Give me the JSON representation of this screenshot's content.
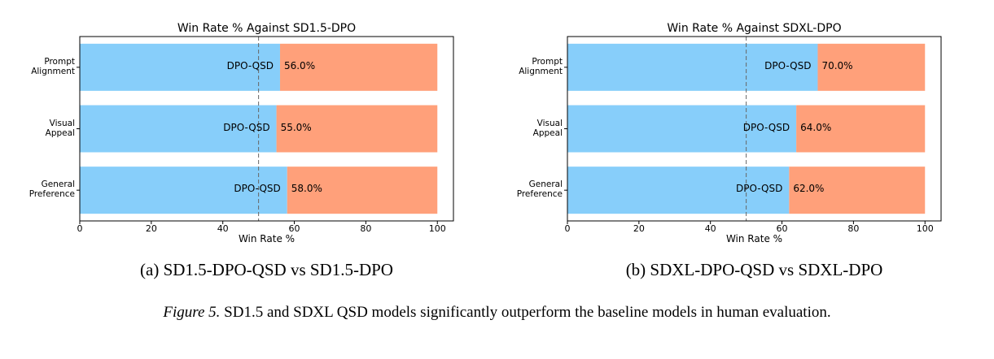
{
  "chart_data": [
    {
      "type": "bar",
      "orientation": "horizontal",
      "stacked": true,
      "title": "Win Rate % Against SD1.5-DPO",
      "xlabel": "Win Rate %",
      "caption": "(a) SD1.5-DPO-QSD vs SD1.5-DPO",
      "categories": [
        "Prompt\nAlignment",
        "Visual\nAppeal",
        "General\nPreference"
      ],
      "series": [
        {
          "name": "DPO-QSD",
          "color": "#87cefa",
          "values": [
            56,
            55,
            58
          ],
          "value_labels": [
            "56.0%",
            "55.0%",
            "58.0%"
          ]
        },
        {
          "color": "#ffa07a",
          "values": [
            44,
            45,
            42
          ]
        }
      ],
      "xlim": [
        0,
        104.5
      ],
      "xticks": [
        0,
        20,
        40,
        60,
        80,
        100
      ],
      "reference_line": 50
    },
    {
      "type": "bar",
      "orientation": "horizontal",
      "stacked": true,
      "title": "Win Rate % Against SDXL-DPO",
      "xlabel": "Win Rate %",
      "caption": "(b) SDXL-DPO-QSD vs SDXL-DPO",
      "categories": [
        "Prompt\nAlignment",
        "Visual\nAppeal",
        "General\nPreference"
      ],
      "series": [
        {
          "name": "DPO-QSD",
          "color": "#87cefa",
          "values": [
            70,
            64,
            62
          ],
          "value_labels": [
            "70.0%",
            "64.0%",
            "62.0%"
          ]
        },
        {
          "color": "#ffa07a",
          "values": [
            30,
            36,
            38
          ]
        }
      ],
      "xlim": [
        0,
        104.5
      ],
      "xticks": [
        0,
        20,
        40,
        60,
        80,
        100
      ],
      "reference_line": 50
    }
  ],
  "figure_caption": {
    "label": "Figure 5.",
    "text": "SD1.5 and SDXL QSD models significantly outperform the baseline models in human evaluation."
  }
}
